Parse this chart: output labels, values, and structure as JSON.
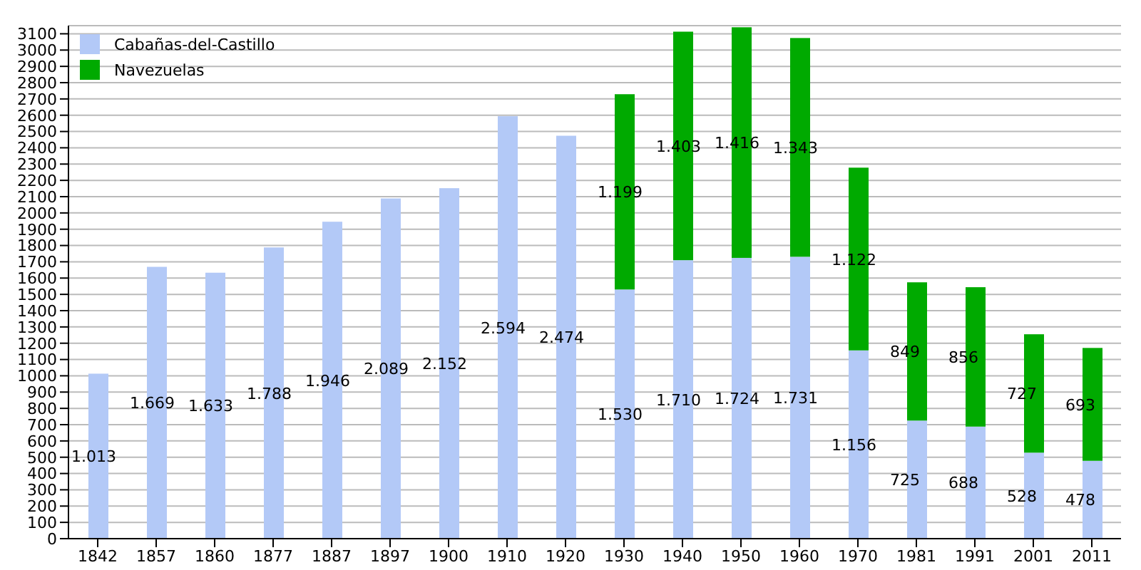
{
  "chart_data": {
    "type": "bar",
    "stacked": true,
    "categories": [
      "1842",
      "1857",
      "1860",
      "1877",
      "1887",
      "1897",
      "1900",
      "1910",
      "1920",
      "1930",
      "1940",
      "1950",
      "1960",
      "1970",
      "1981",
      "1991",
      "2001",
      "2011"
    ],
    "series": [
      {
        "name": "Cabañas-del-Castillo",
        "color": "#b3c9f7",
        "values": [
          1013,
          1669,
          1633,
          1788,
          1946,
          2089,
          2152,
          2594,
          2474,
          1530,
          1710,
          1724,
          1731,
          1156,
          725,
          688,
          528,
          478
        ],
        "value_labels": [
          "1.013",
          "1.669",
          "1.633",
          "1.788",
          "1.946",
          "2.089",
          "2.152",
          "2.594",
          "2.474",
          "1.530",
          "1.710",
          "1.724",
          "1.731",
          "1.156",
          "725",
          "688",
          "528",
          "478"
        ]
      },
      {
        "name": "Navezuelas",
        "color": "#00aa00",
        "values": [
          null,
          null,
          null,
          null,
          null,
          null,
          null,
          null,
          null,
          1199,
          1403,
          1416,
          1343,
          1122,
          849,
          856,
          727,
          693
        ],
        "value_labels": [
          null,
          null,
          null,
          null,
          null,
          null,
          null,
          null,
          null,
          "1.199",
          "1.403",
          "1.416",
          "1.343",
          "1.122",
          "849",
          "856",
          "727",
          "693"
        ]
      }
    ],
    "ylim": [
      0,
      3150
    ],
    "yticks": [
      0,
      100,
      200,
      300,
      400,
      500,
      600,
      700,
      800,
      900,
      1000,
      1100,
      1200,
      1300,
      1400,
      1500,
      1600,
      1700,
      1800,
      1900,
      2000,
      2100,
      2200,
      2300,
      2400,
      2500,
      2600,
      2700,
      2800,
      2900,
      3000,
      3100
    ],
    "grid": "y",
    "legend": "top left"
  }
}
